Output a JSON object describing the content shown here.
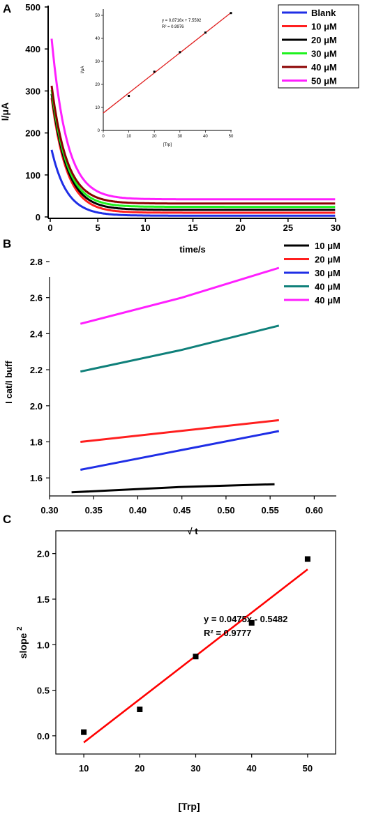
{
  "panels": {
    "a": "A",
    "b": "B",
    "c": "C"
  },
  "chart_data": [
    {
      "id": "A",
      "type": "line",
      "xlabel": "time/s",
      "ylabel": "I/μA",
      "xlim": [
        0,
        30
      ],
      "ylim": [
        0,
        500
      ],
      "xticks": [
        "0",
        "5",
        "10",
        "15",
        "20",
        "25",
        "30"
      ],
      "yticks": [
        "0",
        "100",
        "200",
        "300",
        "400",
        "500"
      ],
      "legend_position": "top-right",
      "series": [
        {
          "name": "Blank",
          "color": "#1f2ee6",
          "peak": 175,
          "plateau": 3
        },
        {
          "name": "10 μM",
          "color": "#ff1f1f",
          "peak": 310,
          "plateau": 10
        },
        {
          "name": "20 μM",
          "color": "#000000",
          "peak": 320,
          "plateau": 17
        },
        {
          "name": "30 μM",
          "color": "#1ef21e",
          "peak": 330,
          "plateau": 24
        },
        {
          "name": "40 μM",
          "color": "#8b0000",
          "peak": 340,
          "plateau": 32
        },
        {
          "name": "50 μM",
          "color": "#ff1fff",
          "peak": 462,
          "plateau": 42
        }
      ]
    },
    {
      "id": "A-inset",
      "type": "scatter",
      "xlabel": "[Trp]",
      "ylabel": "I/μA",
      "xlim": [
        0,
        50
      ],
      "ylim": [
        0,
        50
      ],
      "xticks": [
        "0",
        "10",
        "20",
        "30",
        "40",
        "50"
      ],
      "yticks": [
        "0",
        "10",
        "20",
        "30",
        "40",
        "50"
      ],
      "equation": "y = 0.8716x + 7.5592",
      "r2": "R² = 0.9976",
      "x": [
        10,
        20,
        30,
        40,
        50
      ],
      "y": [
        15,
        25.5,
        34,
        42.5,
        51
      ],
      "fit": {
        "slope": 0.8716,
        "intercept": 7.5592,
        "x_range": [
          0,
          50
        ]
      }
    },
    {
      "id": "B",
      "type": "line",
      "xlabel": "√ t",
      "ylabel": "I cat/I buff",
      "xlim": [
        0.3,
        0.625
      ],
      "ylim": [
        1.5,
        2.8
      ],
      "xticks": [
        "0.30",
        "0.35",
        "0.40",
        "0.45",
        "0.50",
        "0.55",
        "0.60"
      ],
      "yticks": [
        "1.6",
        "1.8",
        "2.0",
        "2.2",
        "2.4",
        "2.6",
        "2.8"
      ],
      "legend_position": "top-right",
      "series": [
        {
          "name": "10 μM",
          "color": "#000000",
          "x": [
            0.325,
            0.45,
            0.555
          ],
          "y": [
            1.52,
            1.55,
            1.565
          ]
        },
        {
          "name": "20 μM",
          "color": "#ff1f1f",
          "x": [
            0.335,
            0.56
          ],
          "y": [
            1.8,
            1.92
          ]
        },
        {
          "name": "30 μM",
          "color": "#1f2ee6",
          "x": [
            0.335,
            0.56
          ],
          "y": [
            1.645,
            1.86
          ]
        },
        {
          "name": "40 μM",
          "color": "#0f807a",
          "x": [
            0.335,
            0.45,
            0.56
          ],
          "y": [
            2.19,
            2.31,
            2.445
          ]
        },
        {
          "name": "40 μM",
          "color": "#ff1fff",
          "x": [
            0.335,
            0.45,
            0.56
          ],
          "y": [
            2.455,
            2.6,
            2.765
          ]
        }
      ]
    },
    {
      "id": "C",
      "type": "scatter",
      "xlabel": "[Trp]",
      "ylabel": "slope",
      "ylabel_sup": "2",
      "xlim": [
        5,
        55
      ],
      "ylim": [
        -0.2,
        2.25
      ],
      "xticks": [
        "10",
        "20",
        "30",
        "40",
        "50"
      ],
      "yticks": [
        "0.0",
        "0.5",
        "1.0",
        "1.5",
        "2.0"
      ],
      "equation": "y = 0.0475x - 0.5482",
      "r2": "R² = 0.9777",
      "x": [
        10,
        20,
        30,
        40,
        50
      ],
      "y": [
        0.04,
        0.29,
        0.87,
        1.24,
        1.94
      ],
      "fit": {
        "slope": 0.0475,
        "intercept": -0.5482,
        "x_range": [
          10,
          50
        ]
      }
    }
  ]
}
